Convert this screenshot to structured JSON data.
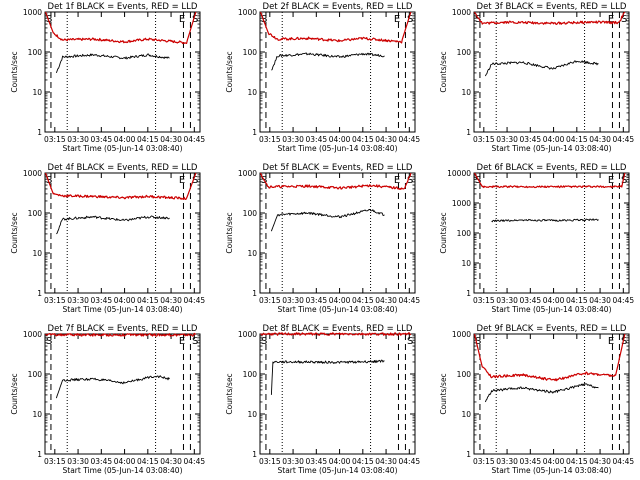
{
  "figure": {
    "xlabel": "Start Time (05-Jun-14 03:08:40)",
    "ylabel": "Counts/sec",
    "xticks": [
      "03:15",
      "03:30",
      "03:45",
      "04:00",
      "04:15",
      "04:30",
      "04:45"
    ],
    "yticks": [
      "1",
      "10",
      "100",
      "1000"
    ],
    "series_colors": {
      "events": "#000000",
      "lld": "#cc0000"
    }
  },
  "chart_data": [
    {
      "type": "line",
      "title": "Det 1f BLACK = Events, RED = LLD",
      "scale": "log-y",
      "xlim": [
        "03:08:40",
        "04:48:40"
      ],
      "ylim": [
        1,
        1000
      ],
      "markers": {
        "s_left": "S",
        "e": "E",
        "s_right": "S"
      },
      "series": [
        {
          "values": [
            {
              "x": "03:16",
              "y": 30
            },
            {
              "x": "03:20",
              "y": 75
            },
            {
              "x": "03:40",
              "y": 85
            },
            {
              "x": "04:00",
              "y": 70
            },
            {
              "x": "04:15",
              "y": 85
            },
            {
              "x": "04:29",
              "y": 70
            }
          ]
        },
        {
          "values": [
            {
              "x": "03:09",
              "y": 1000
            },
            {
              "x": "03:14",
              "y": 300
            },
            {
              "x": "03:20",
              "y": 200
            },
            {
              "x": "03:40",
              "y": 210
            },
            {
              "x": "04:00",
              "y": 180
            },
            {
              "x": "04:15",
              "y": 210
            },
            {
              "x": "04:40",
              "y": 170
            },
            {
              "x": "04:46",
              "y": 1000
            }
          ]
        }
      ]
    },
    {
      "type": "line",
      "title": "Det 2f BLACK = Events, RED = LLD",
      "scale": "log-y",
      "xlim": [
        "03:08:40",
        "04:48:40"
      ],
      "ylim": [
        1,
        1000
      ],
      "markers": {
        "s_left": "S",
        "e": "E",
        "s_right": "S"
      },
      "series": [
        {
          "values": [
            {
              "x": "03:16",
              "y": 35
            },
            {
              "x": "03:20",
              "y": 80
            },
            {
              "x": "03:40",
              "y": 90
            },
            {
              "x": "04:00",
              "y": 75
            },
            {
              "x": "04:15",
              "y": 90
            },
            {
              "x": "04:29",
              "y": 80
            }
          ]
        },
        {
          "values": [
            {
              "x": "03:09",
              "y": 1000
            },
            {
              "x": "03:14",
              "y": 300
            },
            {
              "x": "03:20",
              "y": 210
            },
            {
              "x": "03:40",
              "y": 220
            },
            {
              "x": "04:00",
              "y": 190
            },
            {
              "x": "04:15",
              "y": 220
            },
            {
              "x": "04:40",
              "y": 180
            },
            {
              "x": "04:46",
              "y": 1000
            }
          ]
        }
      ]
    },
    {
      "type": "line",
      "title": "Det 3f BLACK = Events, RED = LLD",
      "scale": "log-y",
      "xlim": [
        "03:08:40",
        "04:48:40"
      ],
      "ylim": [
        1,
        1000
      ],
      "markers": {
        "s_left": "S",
        "e": "E",
        "s_right": "S"
      },
      "series": [
        {
          "values": [
            {
              "x": "03:16",
              "y": 25
            },
            {
              "x": "03:20",
              "y": 50
            },
            {
              "x": "03:40",
              "y": 55
            },
            {
              "x": "04:00",
              "y": 38
            },
            {
              "x": "04:15",
              "y": 60
            },
            {
              "x": "04:29",
              "y": 50
            }
          ]
        },
        {
          "values": [
            {
              "x": "03:09",
              "y": 1000
            },
            {
              "x": "03:14",
              "y": 520
            },
            {
              "x": "03:30",
              "y": 560
            },
            {
              "x": "04:00",
              "y": 520
            },
            {
              "x": "04:25",
              "y": 560
            },
            {
              "x": "04:42",
              "y": 540
            },
            {
              "x": "04:46",
              "y": 1000
            }
          ]
        }
      ]
    },
    {
      "type": "line",
      "title": "Det 4f BLACK = Events, RED = LLD",
      "scale": "log-y",
      "xlim": [
        "03:08:40",
        "04:48:40"
      ],
      "ylim": [
        1,
        1000
      ],
      "markers": {
        "s_left": "S",
        "e": "E",
        "s_right": "S"
      },
      "series": [
        {
          "values": [
            {
              "x": "03:16",
              "y": 30
            },
            {
              "x": "03:20",
              "y": 70
            },
            {
              "x": "03:40",
              "y": 80
            },
            {
              "x": "04:00",
              "y": 65
            },
            {
              "x": "04:15",
              "y": 80
            },
            {
              "x": "04:29",
              "y": 75
            }
          ]
        },
        {
          "values": [
            {
              "x": "03:09",
              "y": 1000
            },
            {
              "x": "03:14",
              "y": 300
            },
            {
              "x": "03:20",
              "y": 270
            },
            {
              "x": "03:40",
              "y": 260
            },
            {
              "x": "04:00",
              "y": 240
            },
            {
              "x": "04:15",
              "y": 260
            },
            {
              "x": "04:40",
              "y": 230
            },
            {
              "x": "04:46",
              "y": 1000
            }
          ]
        }
      ]
    },
    {
      "type": "line",
      "title": "Det 5f BLACK = Events, RED = LLD",
      "scale": "log-y",
      "xlim": [
        "03:08:40",
        "04:48:40"
      ],
      "ylim": [
        1,
        1000
      ],
      "markers": {
        "s_left": "S",
        "e": "E",
        "s_right": "S"
      },
      "series": [
        {
          "values": [
            {
              "x": "03:16",
              "y": 35
            },
            {
              "x": "03:20",
              "y": 90
            },
            {
              "x": "03:40",
              "y": 100
            },
            {
              "x": "04:00",
              "y": 80
            },
            {
              "x": "04:20",
              "y": 120
            },
            {
              "x": "04:29",
              "y": 90
            }
          ]
        },
        {
          "values": [
            {
              "x": "03:09",
              "y": 1000
            },
            {
              "x": "03:14",
              "y": 450
            },
            {
              "x": "03:40",
              "y": 470
            },
            {
              "x": "04:00",
              "y": 420
            },
            {
              "x": "04:20",
              "y": 490
            },
            {
              "x": "04:42",
              "y": 400
            },
            {
              "x": "04:46",
              "y": 1000
            }
          ]
        }
      ]
    },
    {
      "type": "line",
      "title": "Det 6f BLACK = Events, RED = LLD",
      "scale": "log-y",
      "xlim": [
        "03:08:40",
        "04:48:40"
      ],
      "ylim": [
        1,
        10000
      ],
      "yticks": [
        "1",
        "10",
        "100",
        "1000",
        "10000"
      ],
      "markers": {
        "s_left": "S",
        "e": "E",
        "s_right": "S"
      },
      "series": [
        {
          "values": [
            {
              "x": "03:20",
              "y": 250
            },
            {
              "x": "03:40",
              "y": 270
            },
            {
              "x": "04:00",
              "y": 260
            },
            {
              "x": "04:29",
              "y": 280
            }
          ]
        },
        {
          "values": [
            {
              "x": "03:09",
              "y": 10000
            },
            {
              "x": "03:14",
              "y": 3500
            },
            {
              "x": "04:44",
              "y": 3500
            },
            {
              "x": "04:46",
              "y": 10000
            }
          ]
        }
      ]
    },
    {
      "type": "line",
      "title": "Det 7f BLACK = Events, RED = LLD",
      "scale": "log-y",
      "xlim": [
        "03:08:40",
        "04:48:40"
      ],
      "ylim": [
        1,
        1000
      ],
      "markers": {
        "s_left": "S",
        "e": "E",
        "s_right": "S"
      },
      "series": [
        {
          "values": [
            {
              "x": "03:16",
              "y": 25
            },
            {
              "x": "03:20",
              "y": 70
            },
            {
              "x": "03:40",
              "y": 75
            },
            {
              "x": "04:00",
              "y": 60
            },
            {
              "x": "04:20",
              "y": 90
            },
            {
              "x": "04:29",
              "y": 75
            }
          ]
        },
        {
          "values": [
            {
              "x": "03:09",
              "y": 1000
            },
            {
              "x": "03:14",
              "y": 950
            },
            {
              "x": "04:00",
              "y": 950
            },
            {
              "x": "04:44",
              "y": 950
            },
            {
              "x": "04:46",
              "y": 1000
            }
          ]
        }
      ]
    },
    {
      "type": "line",
      "title": "Det 8f BLACK = Events, RED = LLD",
      "scale": "log-y",
      "xlim": [
        "03:08:40",
        "04:48:40"
      ],
      "ylim": [
        1,
        1000
      ],
      "markers": {
        "s_left": "S",
        "e": "",
        "s_right": "S"
      },
      "series": [
        {
          "values": [
            {
              "x": "03:16",
              "y": 30
            },
            {
              "x": "03:17",
              "y": 200
            },
            {
              "x": "03:40",
              "y": 200
            },
            {
              "x": "04:00",
              "y": 195
            },
            {
              "x": "04:29",
              "y": 210
            }
          ]
        },
        {
          "values": [
            {
              "x": "03:09",
              "y": 1000
            },
            {
              "x": "03:12",
              "y": 1000
            },
            {
              "x": "04:46",
              "y": 1000
            }
          ]
        }
      ]
    },
    {
      "type": "line",
      "title": "Det 9f BLACK = Events, RED = LLD",
      "scale": "log-y",
      "xlim": [
        "03:08:40",
        "04:48:40"
      ],
      "ylim": [
        1,
        1000
      ],
      "markers": {
        "s_left": "S",
        "e": "E",
        "s_right": "S"
      },
      "series": [
        {
          "values": [
            {
              "x": "03:16",
              "y": 20
            },
            {
              "x": "03:20",
              "y": 38
            },
            {
              "x": "03:40",
              "y": 45
            },
            {
              "x": "04:00",
              "y": 35
            },
            {
              "x": "04:20",
              "y": 55
            },
            {
              "x": "04:29",
              "y": 45
            }
          ]
        },
        {
          "values": [
            {
              "x": "03:09",
              "y": 1000
            },
            {
              "x": "03:14",
              "y": 150
            },
            {
              "x": "03:20",
              "y": 85
            },
            {
              "x": "03:40",
              "y": 95
            },
            {
              "x": "04:00",
              "y": 70
            },
            {
              "x": "04:20",
              "y": 105
            },
            {
              "x": "04:40",
              "y": 90
            },
            {
              "x": "04:46",
              "y": 1000
            }
          ]
        }
      ]
    }
  ]
}
